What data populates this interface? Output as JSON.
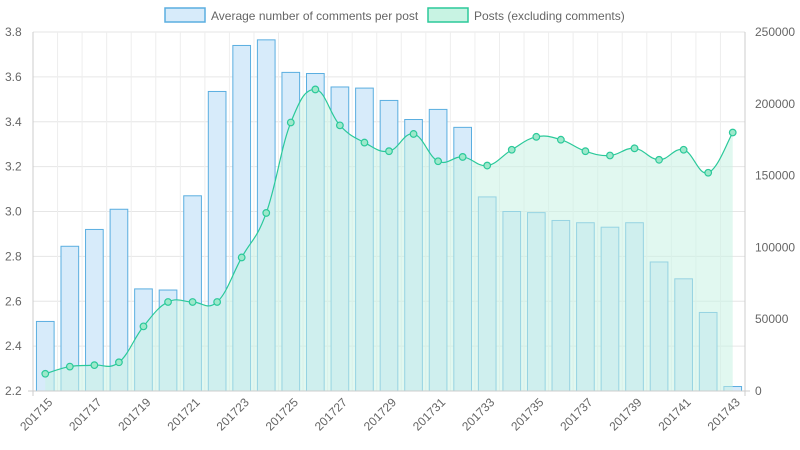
{
  "chart_data": {
    "type": "bar",
    "categories": [
      "201715",
      "201716",
      "201717",
      "201718",
      "201719",
      "201720",
      "201721",
      "201722",
      "201723",
      "201724",
      "201725",
      "201726",
      "201727",
      "201728",
      "201729",
      "201730",
      "201731",
      "201732",
      "201733",
      "201734",
      "201735",
      "201736",
      "201737",
      "201738",
      "201739",
      "201740",
      "201741",
      "201742",
      "201743"
    ],
    "x_tick_labels": [
      "201715",
      "201717",
      "201719",
      "201721",
      "201723",
      "201725",
      "201727",
      "201729",
      "201731",
      "201733",
      "201735",
      "201737",
      "201739",
      "201741",
      "201743"
    ],
    "series": [
      {
        "name": "Average number of comments per post",
        "type": "bar",
        "axis": "left",
        "color_fill": "#d7ebfa",
        "color_stroke": "#5aaee0",
        "values": [
          2.51,
          2.845,
          2.92,
          3.01,
          2.655,
          2.65,
          3.07,
          3.535,
          3.74,
          3.765,
          3.62,
          3.615,
          3.555,
          3.55,
          3.495,
          3.41,
          3.455,
          3.375,
          3.065,
          3.0,
          2.995,
          2.96,
          2.95,
          2.93,
          2.95,
          2.775,
          2.7,
          2.55,
          2.22
        ]
      },
      {
        "name": "Posts (excluding comments)",
        "type": "area",
        "axis": "right",
        "color_fill": "#c8f3e3",
        "color_stroke": "#2bc99a",
        "values": [
          12000,
          17000,
          18000,
          20000,
          45000,
          62000,
          62000,
          62000,
          93000,
          124000,
          187000,
          210000,
          185000,
          173000,
          167000,
          179000,
          160000,
          163000,
          157000,
          168000,
          177000,
          175000,
          167000,
          164000,
          169000,
          161000,
          168000,
          152000,
          180000
        ]
      }
    ],
    "y_left": {
      "min": 2.2,
      "max": 3.8,
      "ticks": [
        "2.2",
        "2.4",
        "2.6",
        "2.8",
        "3.0",
        "3.2",
        "3.4",
        "3.6",
        "3.8"
      ]
    },
    "y_right": {
      "min": 0,
      "max": 250000,
      "ticks": [
        "0",
        "50000",
        "100000",
        "150000",
        "200000",
        "250000"
      ]
    },
    "legend_position": "top-center",
    "grid": true,
    "title": "",
    "xlabel": "",
    "ylabel": ""
  }
}
